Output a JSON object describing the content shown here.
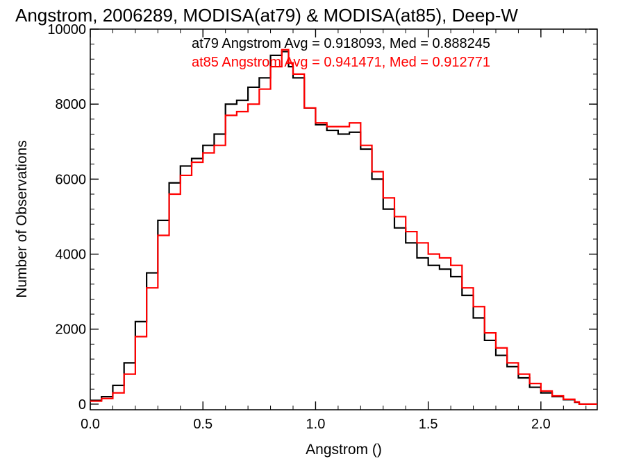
{
  "chart_data": {
    "type": "line",
    "title": "Angstrom, 2006289, MODISA(at79) & MODISA(at85), Deep-W",
    "xlabel": "Angstrom ()",
    "ylabel": "Number of Observations",
    "xlim": [
      0.0,
      2.25
    ],
    "ylim": [
      -150,
      10000
    ],
    "xticks": [
      {
        "value": 0.0,
        "label": "0.0"
      },
      {
        "value": 0.5,
        "label": "0.5"
      },
      {
        "value": 1.0,
        "label": "1.0"
      },
      {
        "value": 1.5,
        "label": "1.5"
      },
      {
        "value": 2.0,
        "label": "2.0"
      }
    ],
    "yticks": [
      {
        "value": 0,
        "label": "0"
      },
      {
        "value": 2000,
        "label": "2000"
      },
      {
        "value": 4000,
        "label": "4000"
      },
      {
        "value": 6000,
        "label": "6000"
      },
      {
        "value": 8000,
        "label": "8000"
      },
      {
        "value": 10000,
        "label": "10000"
      }
    ],
    "step_style": "histogram",
    "x": [
      0.0,
      0.05,
      0.1,
      0.15,
      0.2,
      0.25,
      0.3,
      0.35,
      0.4,
      0.45,
      0.5,
      0.55,
      0.6,
      0.65,
      0.7,
      0.75,
      0.8,
      0.85,
      0.88,
      0.9,
      0.95,
      1.0,
      1.05,
      1.1,
      1.15,
      1.2,
      1.25,
      1.3,
      1.35,
      1.4,
      1.45,
      1.5,
      1.55,
      1.6,
      1.65,
      1.7,
      1.75,
      1.8,
      1.85,
      1.9,
      1.95,
      2.0,
      2.05,
      2.1,
      2.15
    ],
    "series": [
      {
        "name": "at79",
        "color": "#000000",
        "values": [
          100,
          200,
          500,
          1100,
          2200,
          3500,
          4900,
          5900,
          6350,
          6550,
          6900,
          7200,
          8000,
          8100,
          8450,
          8700,
          9300,
          9400,
          9000,
          8700,
          7900,
          7450,
          7300,
          7200,
          7250,
          6800,
          6000,
          5200,
          4700,
          4300,
          3900,
          3700,
          3600,
          3400,
          2900,
          2300,
          1700,
          1300,
          1000,
          700,
          450,
          300,
          200,
          120,
          50
        ]
      },
      {
        "name": "at85",
        "color": "#ff0000",
        "values": [
          80,
          150,
          300,
          800,
          1800,
          3100,
          4500,
          5600,
          6100,
          6450,
          6700,
          6900,
          7700,
          7800,
          8000,
          8400,
          9000,
          9450,
          9100,
          8800,
          7900,
          7500,
          7400,
          7400,
          7500,
          6900,
          6200,
          5500,
          5000,
          4600,
          4300,
          4000,
          3900,
          3700,
          3100,
          2600,
          1900,
          1500,
          1100,
          800,
          550,
          350,
          220,
          130,
          60
        ]
      }
    ],
    "annotations": [
      {
        "text": "at79 Angstrom Avg = 0.918093, Med = 0.888245",
        "color": "#000000"
      },
      {
        "text": "at85 Angstrom Avg = 0.941471, Med = 0.912771",
        "color": "#ff0000"
      }
    ],
    "grid": false,
    "legend_position": "top-right"
  }
}
